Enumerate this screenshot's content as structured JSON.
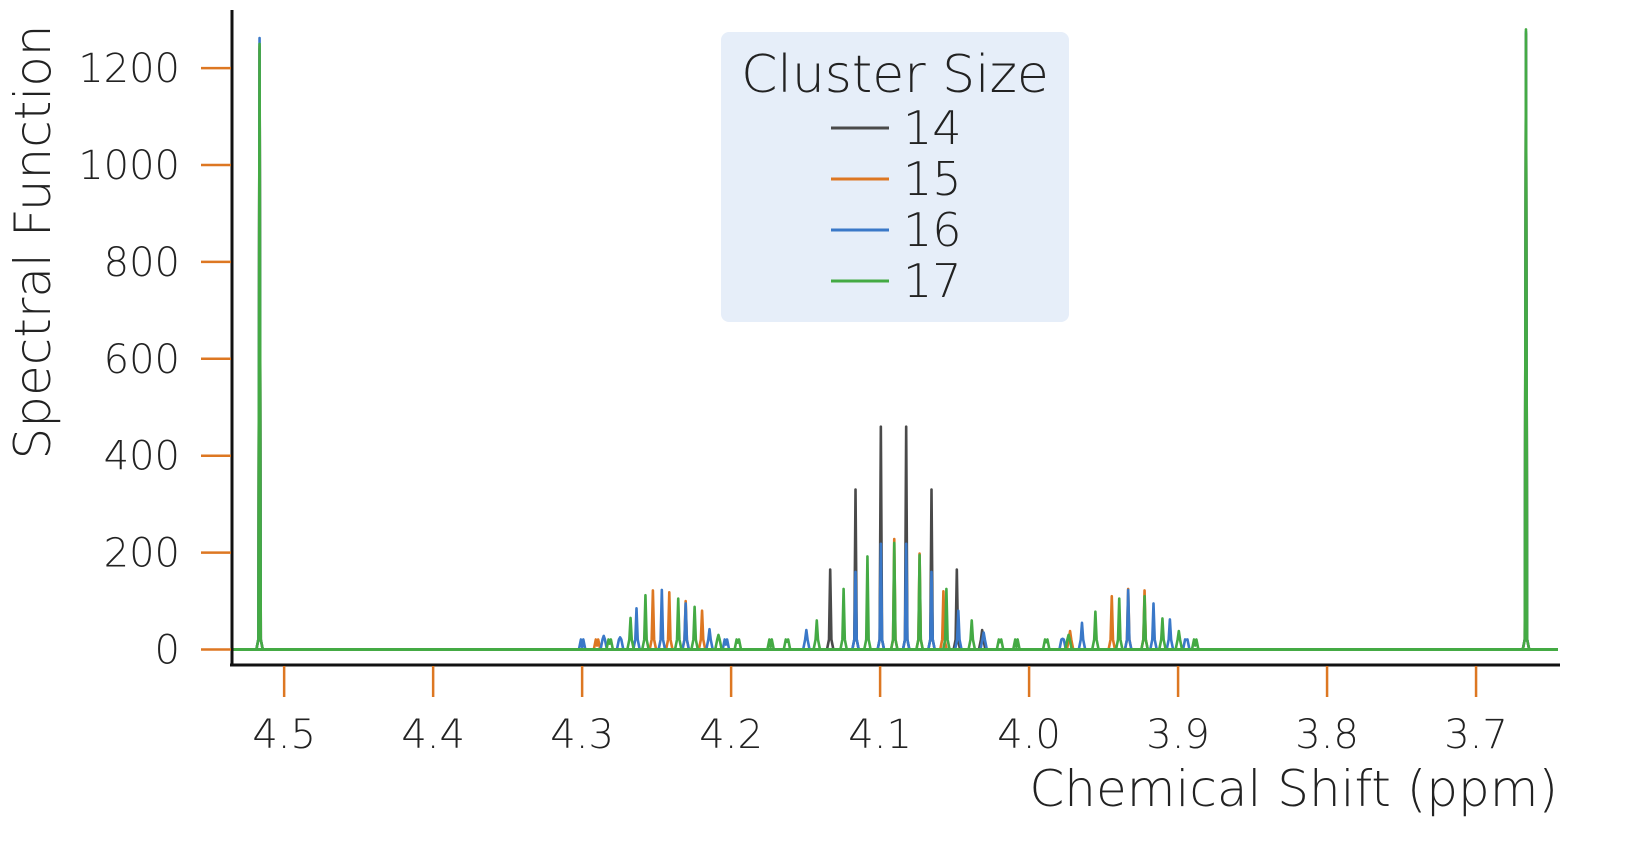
{
  "chart_data": {
    "type": "line",
    "title": "",
    "xlabel": "Chemical Shift (ppm)",
    "ylabel": "Spectral Function",
    "xlim": [
      4.535,
      3.645
    ],
    "ylim": [
      -30,
      1320
    ],
    "x_reversed": true,
    "x_ticks": [
      {
        "value": 4.5,
        "label": "4.5"
      },
      {
        "value": 4.4,
        "label": "4.4"
      },
      {
        "value": 4.3,
        "label": "4.3"
      },
      {
        "value": 4.2,
        "label": "4.2"
      },
      {
        "value": 4.1,
        "label": "4.1"
      },
      {
        "value": 4.0,
        "label": "4.0"
      },
      {
        "value": 3.9,
        "label": "3.9"
      },
      {
        "value": 3.8,
        "label": "3.8"
      },
      {
        "value": 3.7,
        "label": "3.7"
      }
    ],
    "y_ticks": [
      {
        "value": 0,
        "label": "0"
      },
      {
        "value": 200,
        "label": "200"
      },
      {
        "value": 400,
        "label": "400"
      },
      {
        "value": 600,
        "label": "600"
      },
      {
        "value": 800,
        "label": "800"
      },
      {
        "value": 1000,
        "label": "1000"
      },
      {
        "value": 1200,
        "label": "1200"
      }
    ],
    "tick_color": "#dd7722",
    "grid": false,
    "legend": {
      "title": "Cluster Size",
      "placement": "top-center",
      "background": "#e6eef9"
    },
    "series": [
      {
        "name": "14",
        "color": "#4a4a4a",
        "peaks": [
          [
            4.5165,
            1240
          ],
          [
            3.6665,
            1270
          ],
          [
            4.1335,
            165
          ],
          [
            4.1165,
            330
          ],
          [
            4.0995,
            460
          ],
          [
            4.0825,
            460
          ],
          [
            4.0655,
            330
          ],
          [
            4.0485,
            165
          ],
          [
            4.0315,
            40
          ]
        ]
      },
      {
        "name": "15",
        "color": "#dd7722",
        "peaks": [
          [
            4.5165,
            1245
          ],
          [
            3.6665,
            1272
          ],
          [
            4.29,
            8
          ],
          [
            4.2525,
            122
          ],
          [
            4.2415,
            118
          ],
          [
            4.2305,
            100
          ],
          [
            4.2195,
            80
          ],
          [
            4.0905,
            228
          ],
          [
            4.0735,
            198
          ],
          [
            4.0575,
            120
          ],
          [
            3.9725,
            38
          ],
          [
            3.9445,
            110
          ],
          [
            3.9335,
            125
          ],
          [
            3.9225,
            122
          ]
        ]
      },
      {
        "name": "16",
        "color": "#3a78c8",
        "peaks": [
          [
            4.5165,
            1262
          ],
          [
            3.6665,
            1275
          ],
          [
            4.3,
            5
          ],
          [
            4.2855,
            28
          ],
          [
            4.2745,
            25
          ],
          [
            4.2635,
            85
          ],
          [
            4.2465,
            123
          ],
          [
            4.2305,
            95
          ],
          [
            4.2145,
            42
          ],
          [
            4.2035,
            10
          ],
          [
            4.1495,
            40
          ],
          [
            4.1165,
            160
          ],
          [
            4.0995,
            218
          ],
          [
            4.0825,
            218
          ],
          [
            4.0655,
            160
          ],
          [
            4.0475,
            80
          ],
          [
            4.0305,
            35
          ],
          [
            3.9775,
            22
          ],
          [
            3.9645,
            55
          ],
          [
            3.9335,
            123
          ],
          [
            3.9165,
            95
          ],
          [
            3.9055,
            62
          ],
          [
            3.8945,
            20
          ]
        ]
      },
      {
        "name": "17",
        "color": "#44aa44",
        "peaks": [
          [
            4.5165,
            1250
          ],
          [
            3.6665,
            1280
          ],
          [
            4.2815,
            12
          ],
          [
            4.2675,
            65
          ],
          [
            4.2575,
            112
          ],
          [
            4.2355,
            105
          ],
          [
            4.2245,
            88
          ],
          [
            4.2085,
            30
          ],
          [
            4.1955,
            14
          ],
          [
            4.1735,
            5
          ],
          [
            4.1625,
            16
          ],
          [
            4.1425,
            60
          ],
          [
            4.1245,
            125
          ],
          [
            4.1085,
            192
          ],
          [
            4.0905,
            220
          ],
          [
            4.0735,
            195
          ],
          [
            4.0555,
            125
          ],
          [
            4.0385,
            60
          ],
          [
            4.0195,
            15
          ],
          [
            4.0085,
            5
          ],
          [
            3.9885,
            15
          ],
          [
            3.9735,
            30
          ],
          [
            3.9555,
            78
          ],
          [
            3.9395,
            105
          ],
          [
            3.9225,
            110
          ],
          [
            3.9105,
            64
          ],
          [
            3.8995,
            38
          ],
          [
            3.8885,
            8
          ]
        ]
      }
    ]
  }
}
